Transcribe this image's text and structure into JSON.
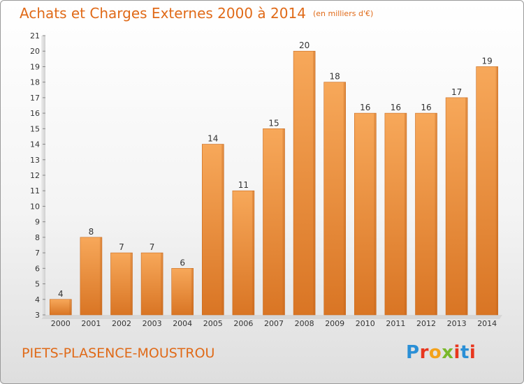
{
  "header": {
    "title": "Achats et Charges Externes 2000 à 2014",
    "unit": "(en milliers d'€)"
  },
  "footer": {
    "commune": "PIETS-PLASENCE-MOUSTROU",
    "logo": "Proxiti",
    "logo_colors": [
      "#2a8fd6",
      "#e8361e",
      "#f4a21a",
      "#79b82a",
      "#e8361e",
      "#2a8fd6",
      "#e8361e"
    ]
  },
  "colors": {
    "text": "#e06a18",
    "bar_light": "#f7a85a",
    "bar_dark": "#d97524"
  },
  "chart_data": {
    "type": "bar",
    "title": "Achats et Charges Externes 2000 à 2014",
    "subtitle": "(en milliers d'€)",
    "categories": [
      "2000",
      "2001",
      "2002",
      "2003",
      "2004",
      "2005",
      "2006",
      "2007",
      "2008",
      "2009",
      "2010",
      "2011",
      "2012",
      "2013",
      "2014"
    ],
    "values": [
      4,
      8,
      7,
      7,
      6,
      14,
      11,
      15,
      20,
      18,
      16,
      16,
      16,
      17,
      19
    ],
    "ylim": [
      3,
      21
    ],
    "yticks": [
      3,
      4,
      5,
      6,
      7,
      8,
      9,
      10,
      11,
      12,
      13,
      14,
      15,
      16,
      17,
      18,
      19,
      20,
      21
    ],
    "grid": false,
    "legend": "none"
  }
}
